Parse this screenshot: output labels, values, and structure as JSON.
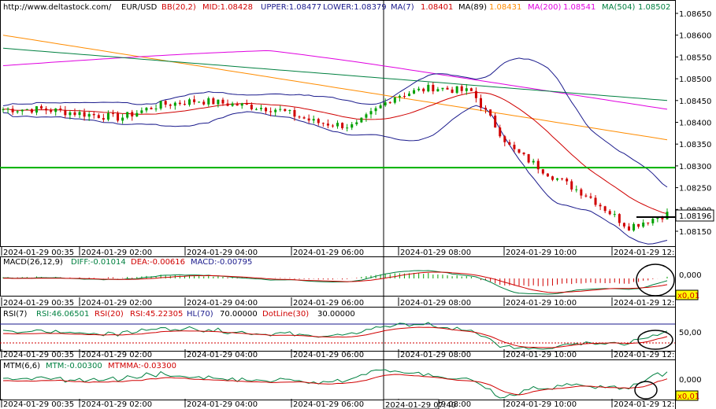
{
  "header": {
    "url": "http://www.deltastock.com/",
    "symbol": "EUR/USD",
    "bb": "BB(20,2)",
    "mid": "MID:1.08428",
    "upper": "UPPER:1.08477",
    "lower": "LOWER:1.08379",
    "ma7": "MA(7)",
    "ma7_val": "1.08401",
    "ma89": "MA(89)",
    "ma89_val": "1.08431",
    "ma200": "MA(200)",
    "ma200_val": "1.08541",
    "ma504": "MA(504)",
    "ma504_val": "1.08502"
  },
  "time_labels": [
    "2024-01-29 00:35",
    "2024-01-29 02:00",
    "2024-01-29 04:00",
    "2024-01-29 06:00",
    "2024-01-29 08:00",
    "2024-01-29 10:00",
    "2024-01-29 12:"
  ],
  "cursor_time": "2024-01-29 07:40",
  "price_axis": [
    "1.08650",
    "1.08600",
    "1.08550",
    "1.08500",
    "1.08450",
    "1.08400",
    "1.08350",
    "1.08300",
    "1.08250",
    "1.08200",
    "1.08150"
  ],
  "current_price": "1.08196",
  "macd": {
    "title": "MACD(26,12,9)",
    "diff": "DIFF:-0.01014",
    "dea": "DEA:-0.00616",
    "macd": "MACD:-0.00795",
    "axis_top": "0,000",
    "axis_bot": "x0,01"
  },
  "rsi": {
    "title": "RSI(7)",
    "rsi": "RSI:46.06501",
    "rsi20": "RSI(20)",
    "rsi45": "RSI:45.22305",
    "hl": "HL(70)",
    "hl_val": "70.00000",
    "dot": "DotLine(30)",
    "dot_val": "30.00000",
    "axis": "50,00"
  },
  "mtm": {
    "title": "MTM(6,6)",
    "mtm": "MTM:-0.00300",
    "mtmma": "MTMMA:-0.03300",
    "axis_top": "0,000",
    "axis_bot": "x0,01"
  },
  "colors": {
    "up": "#00a000",
    "down": "#d00000",
    "bb": "#1a1a8c",
    "ma7": "#d00000",
    "ma89": "#ff8c00",
    "ma200": "#e000e0",
    "ma504": "#008040",
    "hline": "#00b000"
  },
  "chart_data": {
    "type": "candlestick",
    "symbol": "EUR/USD",
    "price_range": [
      1.0812,
      1.0867
    ],
    "horizontal_line": 1.08296,
    "ma89": {
      "start": 1.086,
      "end": 1.0836
    },
    "ma200": {
      "start": 1.0853,
      "peak": 1.0857,
      "end": 1.0843
    },
    "ma504": {
      "start": 1.0857,
      "end": 1.0845
    },
    "key_closes": [
      1.0843,
      1.0843,
      1.0842,
      1.0841,
      1.0844,
      1.0845,
      1.0844,
      1.0843,
      1.084,
      1.0839,
      1.0846,
      1.0848,
      1.0847,
      1.0834,
      1.0828,
      1.0823,
      1.0816,
      1.0819
    ],
    "annotations": [
      "ellipse at MACD end",
      "ellipse at RSI end",
      "ellipse at MTM end"
    ]
  }
}
